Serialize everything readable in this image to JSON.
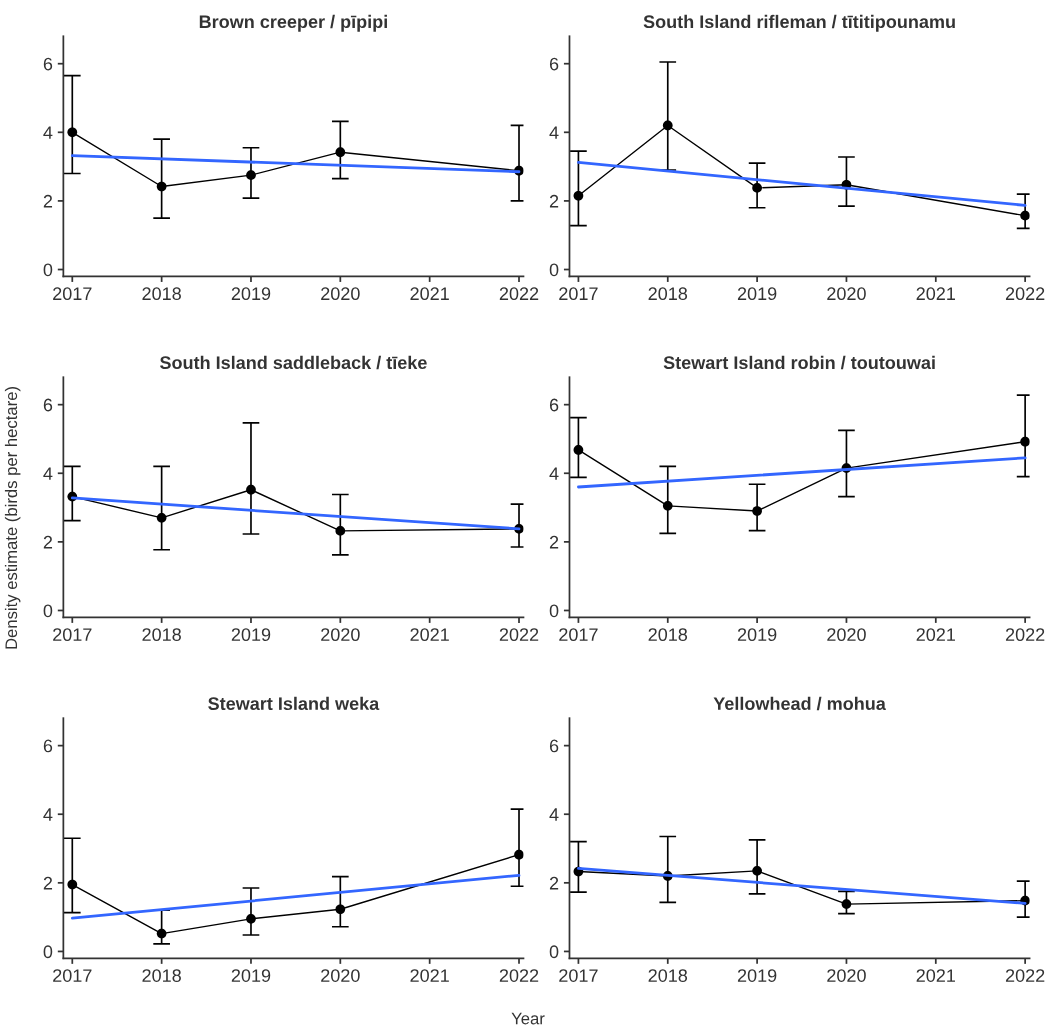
{
  "chart_data": [
    {
      "type": "line",
      "title": "Brown creeper / pīpipi",
      "xlim": [
        2016.9,
        2022.05
      ],
      "ylim": [
        -0.2,
        6.8
      ],
      "xticks": [
        2017,
        2018,
        2019,
        2020,
        2021,
        2022
      ],
      "yticks": [
        0,
        2,
        4,
        6
      ],
      "grid": false,
      "series": [
        {
          "color": "#000000",
          "marker": "circle",
          "x": [
            2017,
            2018,
            2019,
            2020,
            2022
          ],
          "values": [
            4.0,
            2.42,
            2.75,
            3.42,
            2.88
          ],
          "errors": [
            [
              2.8,
              5.65
            ],
            [
              1.5,
              3.8
            ],
            [
              2.08,
              3.55
            ],
            [
              2.65,
              4.32
            ],
            [
              2.0,
              4.2
            ]
          ]
        },
        {
          "color": "#3366ff",
          "marker": "none",
          "x": [
            2017,
            2022
          ],
          "values": [
            3.32,
            2.85
          ]
        }
      ]
    },
    {
      "type": "line",
      "title": "South Island rifleman / tītitipounamu",
      "xlim": [
        2016.9,
        2022.05
      ],
      "ylim": [
        -0.2,
        6.8
      ],
      "xticks": [
        2017,
        2018,
        2019,
        2020,
        2021,
        2022
      ],
      "yticks": [
        0,
        2,
        4,
        6
      ],
      "grid": false,
      "series": [
        {
          "color": "#000000",
          "marker": "circle",
          "x": [
            2017,
            2018,
            2019,
            2020,
            2022
          ],
          "values": [
            2.15,
            4.2,
            2.38,
            2.47,
            1.57
          ],
          "errors": [
            [
              1.28,
              3.45
            ],
            [
              2.9,
              6.05
            ],
            [
              1.8,
              3.1
            ],
            [
              1.85,
              3.28
            ],
            [
              1.2,
              2.2
            ]
          ]
        },
        {
          "color": "#3366ff",
          "marker": "none",
          "x": [
            2017,
            2022
          ],
          "values": [
            3.12,
            1.87
          ]
        }
      ]
    },
    {
      "type": "line",
      "title": "South Island saddleback / tīeke",
      "ylabel": "Density estimate (birds per hectare)",
      "xlim": [
        2016.9,
        2022.05
      ],
      "ylim": [
        -0.2,
        6.8
      ],
      "xticks": [
        2017,
        2018,
        2019,
        2020,
        2021,
        2022
      ],
      "yticks": [
        0,
        2,
        4,
        6
      ],
      "grid": false,
      "series": [
        {
          "color": "#000000",
          "marker": "circle",
          "x": [
            2017,
            2018,
            2019,
            2020,
            2022
          ],
          "values": [
            3.32,
            2.7,
            3.52,
            2.32,
            2.38
          ],
          "errors": [
            [
              2.62,
              4.2
            ],
            [
              1.77,
              4.2
            ],
            [
              2.23,
              5.47
            ],
            [
              1.62,
              3.38
            ],
            [
              1.85,
              3.1
            ]
          ]
        },
        {
          "color": "#3366ff",
          "marker": "none",
          "x": [
            2017,
            2022
          ],
          "values": [
            3.28,
            2.38
          ]
        }
      ]
    },
    {
      "type": "line",
      "title": "Stewart Island robin / toutouwai",
      "xlim": [
        2016.9,
        2022.05
      ],
      "ylim": [
        -0.2,
        6.8
      ],
      "xticks": [
        2017,
        2018,
        2019,
        2020,
        2021,
        2022
      ],
      "yticks": [
        0,
        2,
        4,
        6
      ],
      "grid": false,
      "series": [
        {
          "color": "#000000",
          "marker": "circle",
          "x": [
            2017,
            2018,
            2019,
            2020,
            2022
          ],
          "values": [
            4.68,
            3.05,
            2.9,
            4.15,
            4.92
          ],
          "errors": [
            [
              3.88,
              5.62
            ],
            [
              2.25,
              4.2
            ],
            [
              2.33,
              3.68
            ],
            [
              3.32,
              5.25
            ],
            [
              3.9,
              6.28
            ]
          ]
        },
        {
          "color": "#3366ff",
          "marker": "none",
          "x": [
            2017,
            2022
          ],
          "values": [
            3.6,
            4.45
          ]
        }
      ]
    },
    {
      "type": "line",
      "title": "Stewart Island weka",
      "xlabel": "Year",
      "xlim": [
        2016.9,
        2022.05
      ],
      "ylim": [
        -0.2,
        6.8
      ],
      "xticks": [
        2017,
        2018,
        2019,
        2020,
        2021,
        2022
      ],
      "yticks": [
        0,
        2,
        4,
        6
      ],
      "grid": false,
      "series": [
        {
          "color": "#000000",
          "marker": "circle",
          "x": [
            2017,
            2018,
            2019,
            2020,
            2022
          ],
          "values": [
            1.95,
            0.52,
            0.95,
            1.23,
            2.82
          ],
          "errors": [
            [
              1.13,
              3.3
            ],
            [
              0.22,
              1.2
            ],
            [
              0.48,
              1.85
            ],
            [
              0.72,
              2.18
            ],
            [
              1.9,
              4.15
            ]
          ]
        },
        {
          "color": "#3366ff",
          "marker": "none",
          "x": [
            2017,
            2022
          ],
          "values": [
            0.97,
            2.22
          ]
        }
      ]
    },
    {
      "type": "line",
      "title": "Yellowhead / mohua",
      "xlim": [
        2016.9,
        2022.05
      ],
      "ylim": [
        -0.2,
        6.8
      ],
      "xticks": [
        2017,
        2018,
        2019,
        2020,
        2021,
        2022
      ],
      "yticks": [
        0,
        2,
        4,
        6
      ],
      "grid": false,
      "series": [
        {
          "color": "#000000",
          "marker": "circle",
          "x": [
            2017,
            2018,
            2019,
            2020,
            2022
          ],
          "values": [
            2.33,
            2.2,
            2.35,
            1.38,
            1.48
          ],
          "errors": [
            [
              1.73,
              3.2
            ],
            [
              1.43,
              3.35
            ],
            [
              1.68,
              3.25
            ],
            [
              1.1,
              1.75
            ],
            [
              1.0,
              2.05
            ]
          ]
        },
        {
          "color": "#3366ff",
          "marker": "none",
          "x": [
            2017,
            2022
          ],
          "values": [
            2.42,
            1.4
          ]
        }
      ]
    }
  ]
}
